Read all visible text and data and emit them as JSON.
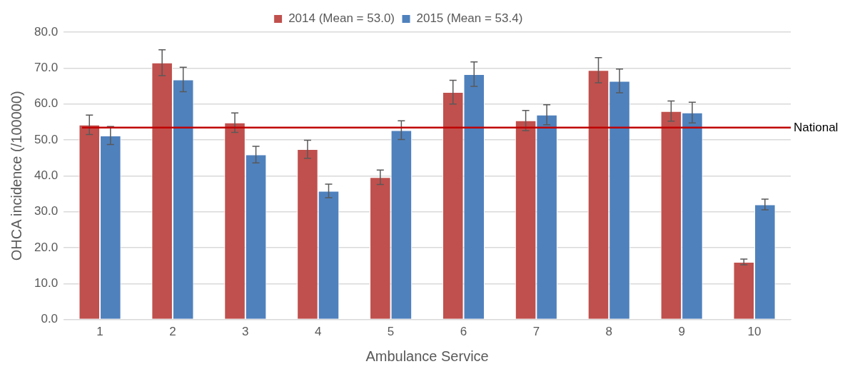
{
  "chart_data": {
    "type": "bar",
    "xlabel": "Ambulance Service",
    "ylabel": "OHCA incidence (/100000)",
    "categories": [
      "1",
      "2",
      "3",
      "4",
      "5",
      "6",
      "7",
      "8",
      "9",
      "10"
    ],
    "series": [
      {
        "name": "2014 (Mean = 53.0)",
        "color": "#c0504d",
        "values": [
          54.2,
          71.5,
          54.8,
          47.4,
          39.6,
          63.3,
          55.4,
          69.4,
          58.0,
          16.0
        ],
        "errors": [
          2.7,
          3.6,
          2.7,
          2.5,
          2.0,
          3.3,
          2.8,
          3.5,
          2.8,
          0.8
        ]
      },
      {
        "name": "2015 (Mean = 53.4)",
        "color": "#4f81bd",
        "values": [
          51.2,
          66.8,
          45.9,
          35.8,
          52.7,
          68.3,
          57.0,
          66.4,
          57.6,
          32.0
        ],
        "errors": [
          2.5,
          3.4,
          2.3,
          1.9,
          2.6,
          3.4,
          2.8,
          3.3,
          2.9,
          1.5
        ]
      }
    ],
    "ylim": [
      0,
      80
    ],
    "yticks": [
      {
        "value": 0,
        "label": "0.0"
      },
      {
        "value": 10,
        "label": "10.0"
      },
      {
        "value": 20,
        "label": "20.0"
      },
      {
        "value": 30,
        "label": "30.0"
      },
      {
        "value": 40,
        "label": "40.0"
      },
      {
        "value": 50,
        "label": "50.0"
      },
      {
        "value": 60,
        "label": "60.0"
      },
      {
        "value": 70,
        "label": "70.0"
      },
      {
        "value": 80,
        "label": "80.0"
      }
    ],
    "ref_lines": [
      {
        "axis": "y",
        "value": 53.4,
        "label": "National",
        "color": "#c00000"
      }
    ],
    "grid": "y",
    "legend": "top"
  }
}
